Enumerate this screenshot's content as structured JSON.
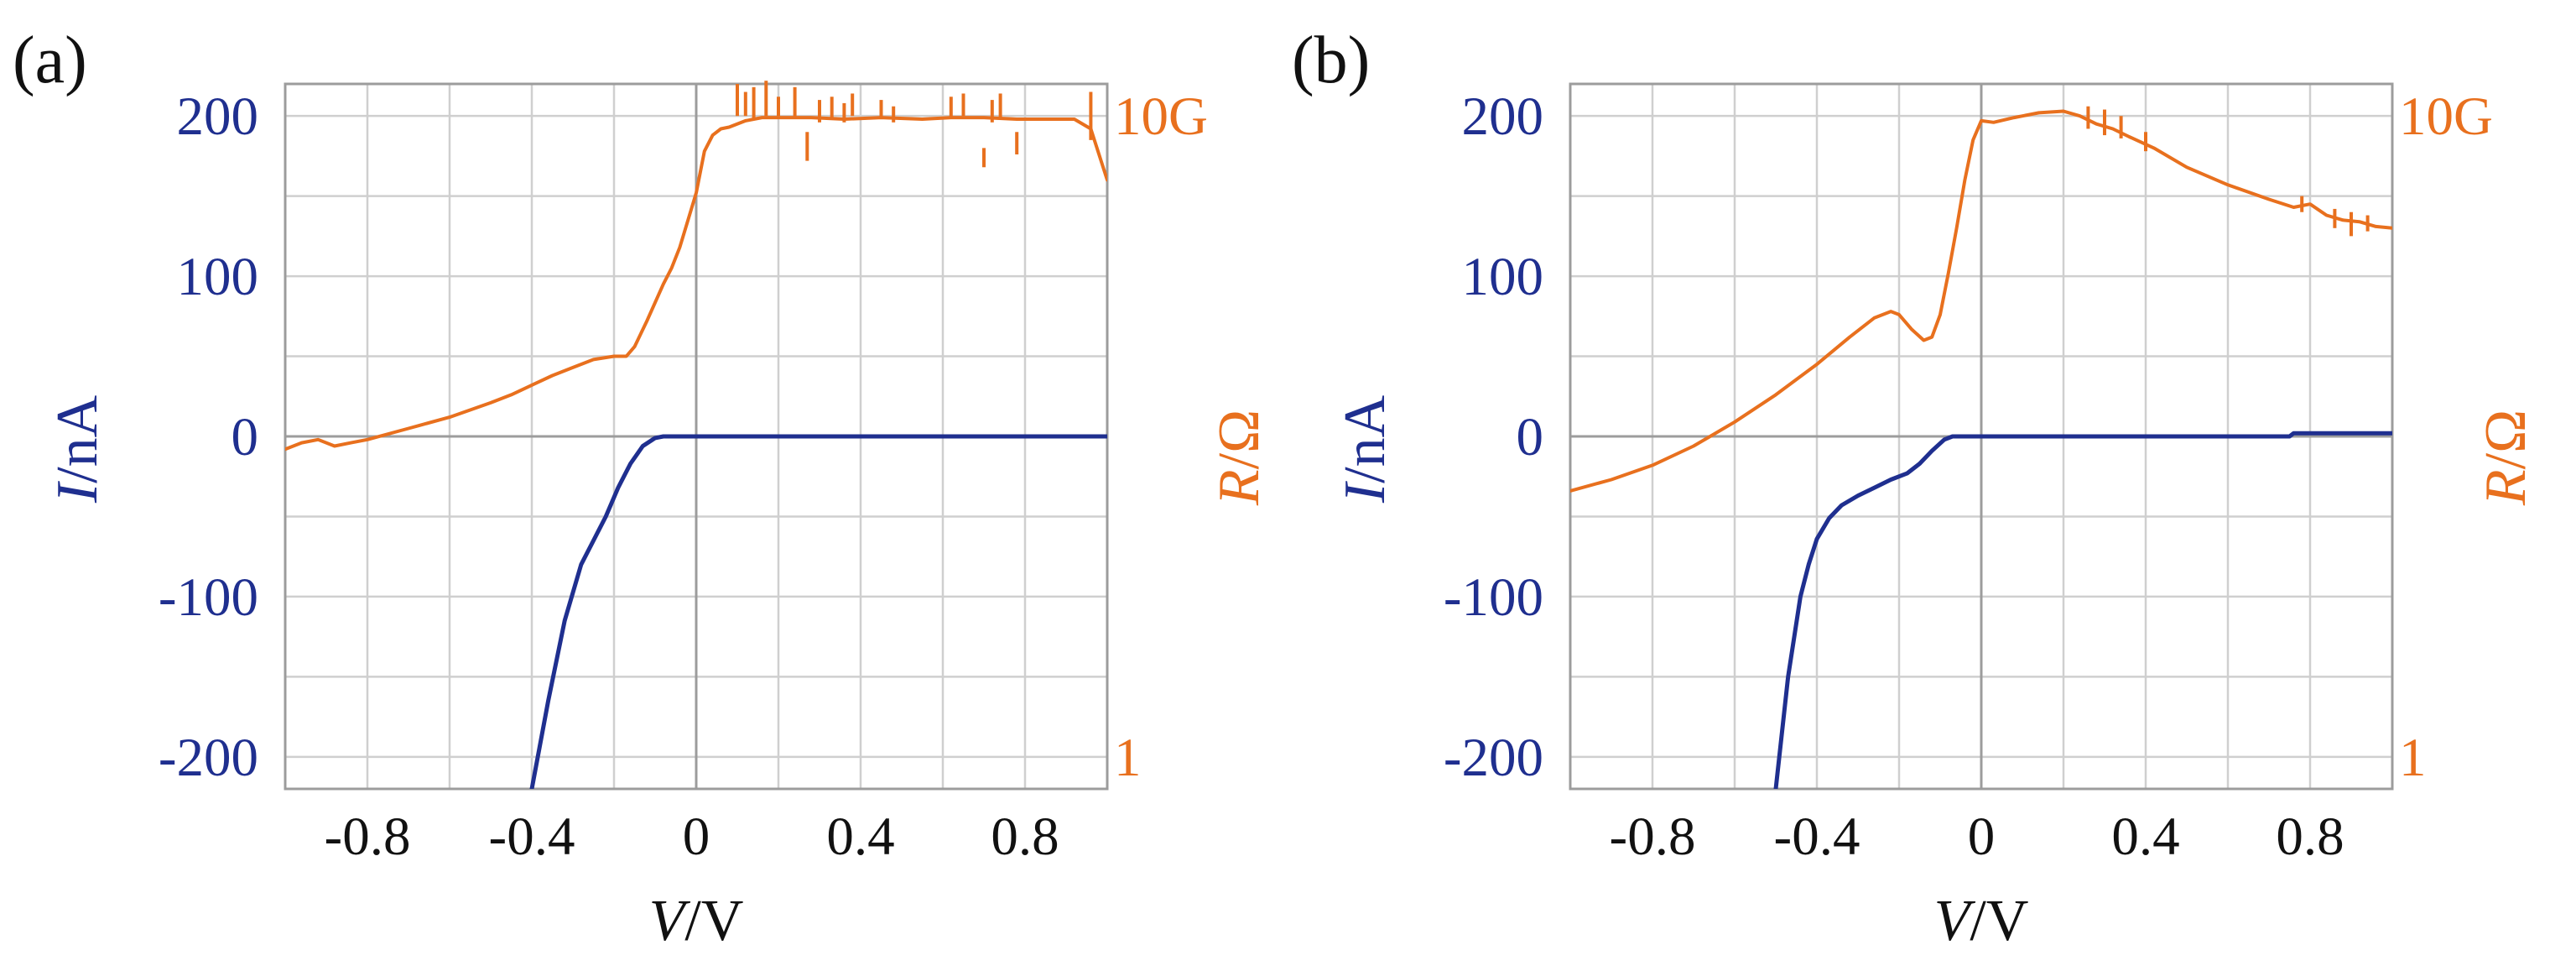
{
  "colors": {
    "current": "#1f2f8f",
    "resistance": "#e8701e",
    "grid": "#cfcfcf",
    "text": "#111111"
  },
  "chart_data": [
    {
      "type": "line",
      "panel_label": "(a)",
      "xlabel_italic": "V",
      "xlabel_unit": "/V",
      "ylabel_left_italic": "I",
      "ylabel_left_unit": "/nA",
      "ylabel_right_italic": "R",
      "ylabel_right_unit": "/Ω",
      "xlim": [
        -1.0,
        1.0
      ],
      "ylim_left": [
        -220,
        220
      ],
      "ylim_right_labels": {
        "top": "10G",
        "bottom": "1"
      },
      "x_ticks": [
        "-0.8",
        "-0.4",
        "0",
        "0.4",
        "0.8"
      ],
      "x_tick_values": [
        -0.8,
        -0.4,
        0,
        0.4,
        0.8
      ],
      "y_ticks_left": [
        "200",
        "100",
        "0",
        "-100",
        "-200"
      ],
      "y_tick_values_left": [
        200,
        100,
        0,
        -100,
        -200
      ],
      "grid": true,
      "series": [
        {
          "name": "I",
          "axis": "left",
          "x": [
            -0.4,
            -0.36,
            -0.32,
            -0.28,
            -0.25,
            -0.22,
            -0.19,
            -0.16,
            -0.13,
            -0.1,
            -0.08,
            -0.06,
            -0.04,
            0.0,
            0.5,
            1.0
          ],
          "y": [
            -220,
            -165,
            -115,
            -80,
            -65,
            -50,
            -32,
            -17,
            -6,
            -1,
            0,
            0,
            0,
            0,
            0,
            0
          ]
        },
        {
          "name": "R",
          "axis": "right_scaled",
          "x": [
            -1.0,
            -0.96,
            -0.92,
            -0.88,
            -0.84,
            -0.8,
            -0.7,
            -0.6,
            -0.5,
            -0.45,
            -0.4,
            -0.35,
            -0.3,
            -0.25,
            -0.2,
            -0.17,
            -0.15,
            -0.12,
            -0.08,
            -0.06,
            -0.04,
            -0.02,
            0.0,
            0.02,
            0.04,
            0.06,
            0.08,
            0.12,
            0.16,
            0.2,
            0.28,
            0.36,
            0.45,
            0.55,
            0.62,
            0.7,
            0.78,
            0.85,
            0.92,
            0.96,
            1.0
          ],
          "y": [
            -8,
            -4,
            -2,
            -6,
            -4,
            -2,
            5,
            12,
            21,
            26,
            32,
            38,
            43,
            48,
            50,
            50,
            56,
            72,
            95,
            105,
            118,
            135,
            152,
            178,
            188,
            192,
            193,
            197,
            199,
            199,
            199,
            198,
            199,
            198,
            199,
            199,
            198,
            198,
            198,
            192,
            160
          ]
        },
        {
          "name": "R-spikes",
          "axis": "right_scaled",
          "x": [
            0.1,
            0.12,
            0.14,
            0.17,
            0.2,
            0.24,
            0.27,
            0.3,
            0.33,
            0.36,
            0.38,
            0.45,
            0.48,
            0.62,
            0.65,
            0.7,
            0.72,
            0.74,
            0.78,
            0.96
          ],
          "y": [
            [
              200,
              220
            ],
            [
              200,
              215
            ],
            [
              198,
              218
            ],
            [
              200,
              222
            ],
            [
              200,
              212
            ],
            [
              198,
              218
            ],
            [
              190,
              172
            ],
            [
              196,
              210
            ],
            [
              198,
              212
            ],
            [
              196,
              208
            ],
            [
              200,
              214
            ],
            [
              198,
              210
            ],
            [
              196,
              206
            ],
            [
              198,
              212
            ],
            [
              200,
              214
            ],
            [
              180,
              168
            ],
            [
              196,
              210
            ],
            [
              198,
              214
            ],
            [
              190,
              176
            ],
            [
              185,
              215
            ]
          ]
        }
      ]
    },
    {
      "type": "line",
      "panel_label": "(b)",
      "xlabel_italic": "V",
      "xlabel_unit": "/V",
      "ylabel_left_italic": "I",
      "ylabel_left_unit": "/nA",
      "ylabel_right_italic": "R",
      "ylabel_right_unit": "/Ω",
      "xlim": [
        -1.0,
        1.0
      ],
      "ylim_left": [
        -220,
        220
      ],
      "ylim_right_labels": {
        "top": "10G",
        "bottom": "1"
      },
      "x_ticks": [
        "-0.8",
        "-0.4",
        "0",
        "0.4",
        "0.8"
      ],
      "x_tick_values": [
        -0.8,
        -0.4,
        0,
        0.4,
        0.8
      ],
      "y_ticks_left": [
        "200",
        "100",
        "0",
        "-100",
        "-200"
      ],
      "y_tick_values_left": [
        200,
        100,
        0,
        -100,
        -200
      ],
      "grid": true,
      "series": [
        {
          "name": "I",
          "axis": "left",
          "x": [
            -0.5,
            -0.47,
            -0.44,
            -0.42,
            -0.4,
            -0.37,
            -0.34,
            -0.3,
            -0.26,
            -0.22,
            -0.18,
            -0.15,
            -0.12,
            -0.09,
            -0.07,
            -0.05,
            0.0,
            0.5,
            0.75,
            0.76,
            1.0
          ],
          "y": [
            -220,
            -150,
            -100,
            -80,
            -64,
            -51,
            -43,
            -37,
            -32,
            -27,
            -23,
            -17,
            -9,
            -2,
            0,
            0,
            0,
            0,
            0,
            2,
            2
          ]
        },
        {
          "name": "R",
          "axis": "right_scaled",
          "x": [
            -1.0,
            -0.9,
            -0.8,
            -0.7,
            -0.6,
            -0.5,
            -0.4,
            -0.32,
            -0.26,
            -0.22,
            -0.2,
            -0.17,
            -0.14,
            -0.12,
            -0.1,
            -0.08,
            -0.06,
            -0.04,
            -0.02,
            0.0,
            0.03,
            0.08,
            0.14,
            0.2,
            0.24,
            0.28,
            0.32,
            0.36,
            0.42,
            0.5,
            0.6,
            0.7,
            0.76,
            0.8,
            0.84,
            0.88,
            0.92,
            0.96,
            1.0
          ],
          "y": [
            -34,
            -27,
            -18,
            -6,
            9,
            26,
            45,
            62,
            74,
            78,
            76,
            67,
            60,
            62,
            76,
            102,
            130,
            160,
            185,
            197,
            196,
            199,
            202,
            203,
            200,
            195,
            192,
            187,
            180,
            168,
            157,
            148,
            143,
            145,
            138,
            135,
            134,
            131,
            130
          ]
        },
        {
          "name": "R-spikes",
          "axis": "right_scaled",
          "x": [
            0.26,
            0.3,
            0.34,
            0.4,
            0.78,
            0.86,
            0.9,
            0.94
          ],
          "y": [
            [
              192,
              206
            ],
            [
              188,
              204
            ],
            [
              186,
              200
            ],
            [
              178,
              190
            ],
            [
              140,
              150
            ],
            [
              130,
              142
            ],
            [
              125,
              140
            ],
            [
              128,
              138
            ]
          ]
        }
      ]
    }
  ]
}
